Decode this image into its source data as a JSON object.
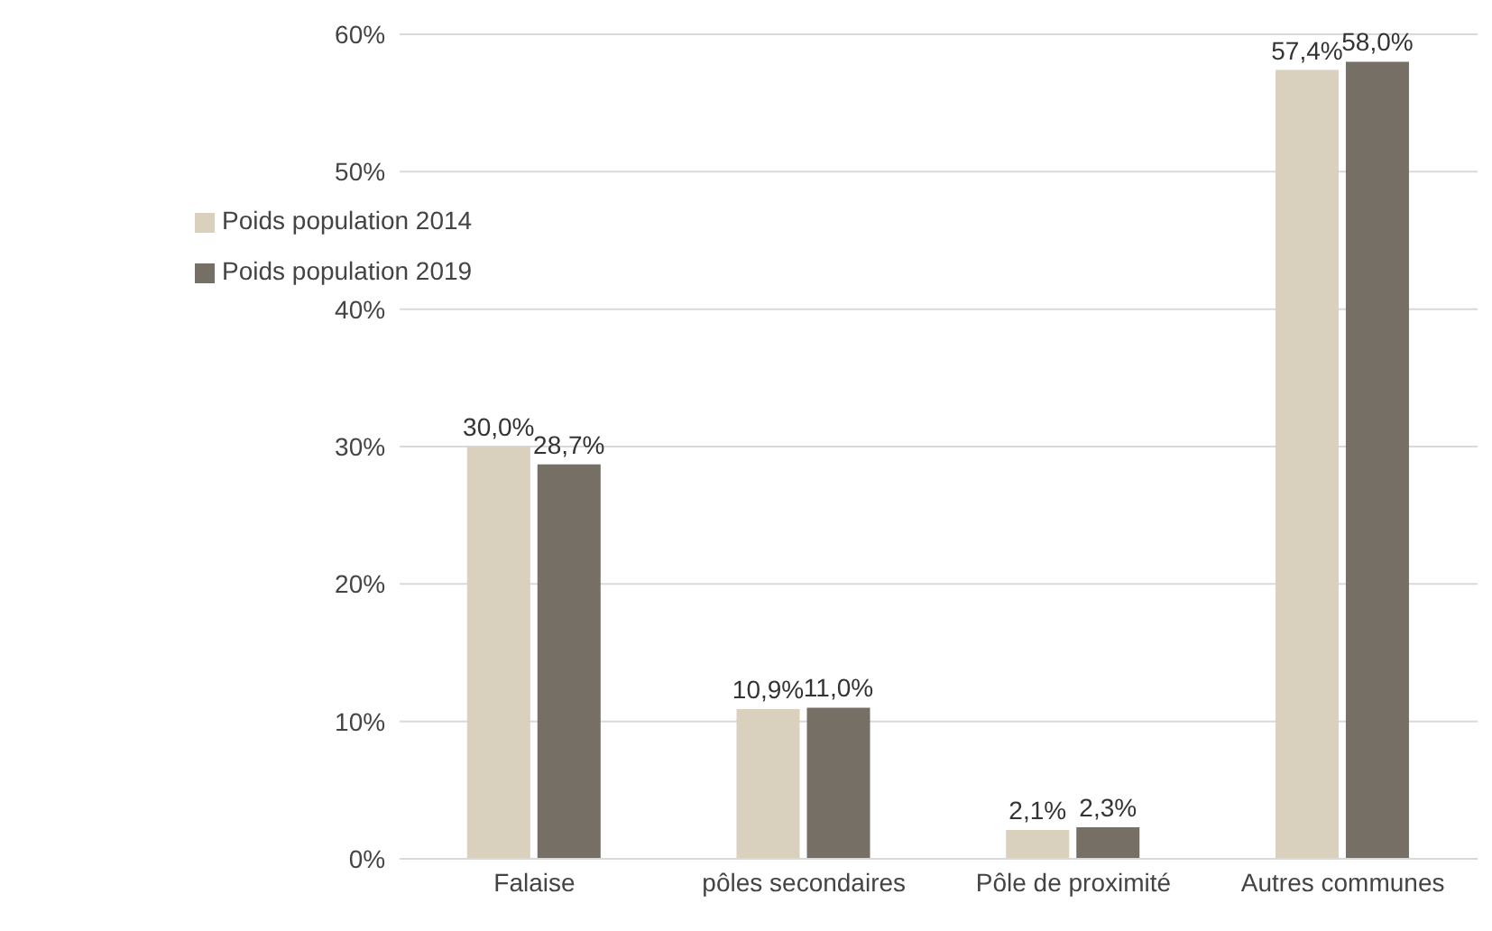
{
  "chart_data": {
    "type": "bar",
    "categories": [
      "Falaise",
      "pôles secondaires",
      "Pôle de proximité",
      "Autres communes"
    ],
    "series": [
      {
        "name": "Poids population 2014",
        "color": "#d9d0bd",
        "values": [
          30.0,
          10.9,
          2.1,
          57.4
        ],
        "value_labels": [
          "30,0%",
          "10,9%",
          "2,1%",
          "57,4%"
        ]
      },
      {
        "name": "Poids population 2019",
        "color": "#766f66",
        "values": [
          28.7,
          11.0,
          2.3,
          58.0
        ],
        "value_labels": [
          "28,7%",
          "11,0%",
          "2,3%",
          "58,0%"
        ]
      }
    ],
    "ylim": [
      0,
      60
    ],
    "yticks": [
      {
        "value": 0,
        "label": "0%"
      },
      {
        "value": 10,
        "label": "10%"
      },
      {
        "value": 20,
        "label": "20%"
      },
      {
        "value": 30,
        "label": "30%"
      },
      {
        "value": 40,
        "label": "40%"
      },
      {
        "value": 50,
        "label": "50%"
      },
      {
        "value": 60,
        "label": "60%"
      }
    ],
    "grid": "y",
    "legend": "top left"
  }
}
